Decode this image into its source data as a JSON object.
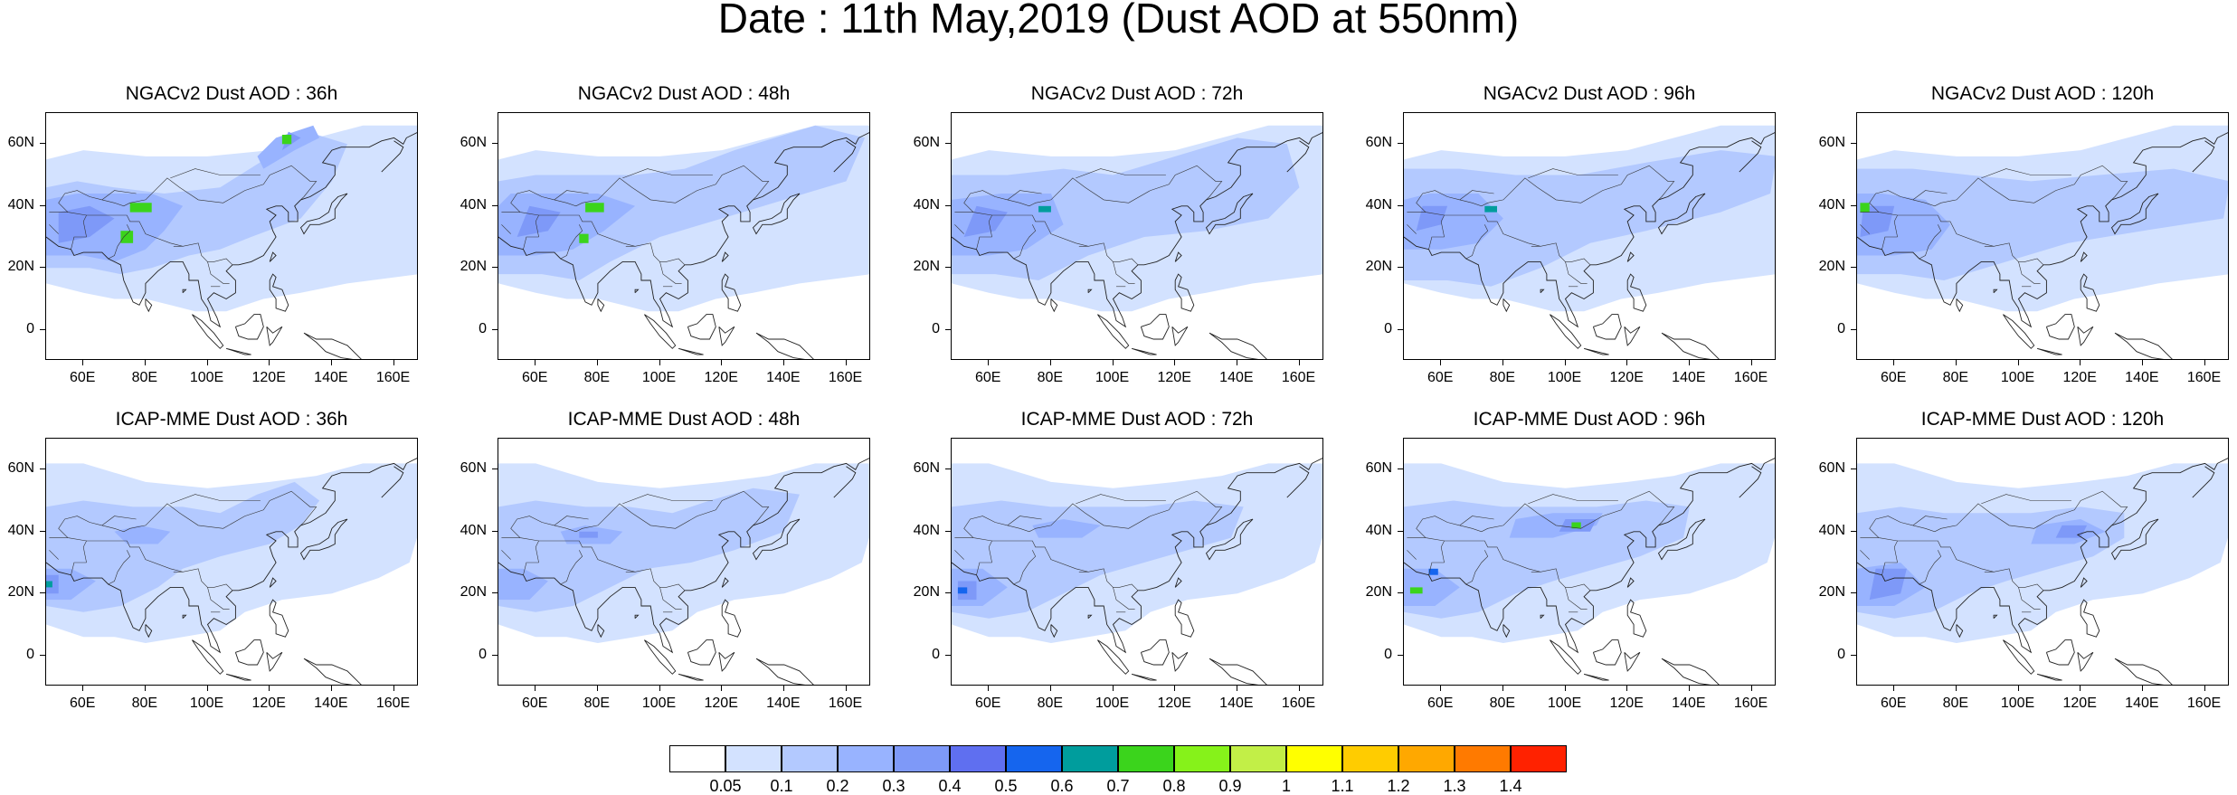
{
  "title": "Date : 11th May,2019 (Dust AOD at 550nm)",
  "axes": {
    "y_ticks": [
      "60N",
      "40N",
      "20N",
      "0"
    ],
    "x_ticks": [
      "60E",
      "80E",
      "100E",
      "120E",
      "140E",
      "160E"
    ]
  },
  "panels": [
    {
      "title": "NGACv2 Dust AOD : 36h",
      "model": "NGACv2",
      "lead": "36h"
    },
    {
      "title": "NGACv2 Dust AOD : 48h",
      "model": "NGACv2",
      "lead": "48h"
    },
    {
      "title": "NGACv2 Dust AOD : 72h",
      "model": "NGACv2",
      "lead": "72h"
    },
    {
      "title": "NGACv2 Dust AOD : 96h",
      "model": "NGACv2",
      "lead": "96h"
    },
    {
      "title": "NGACv2 Dust AOD : 120h",
      "model": "NGACv2",
      "lead": "120h"
    },
    {
      "title": "ICAP-MME Dust AOD : 36h",
      "model": "ICAP-MME",
      "lead": "36h"
    },
    {
      "title": "ICAP-MME Dust AOD : 48h",
      "model": "ICAP-MME",
      "lead": "48h"
    },
    {
      "title": "ICAP-MME Dust AOD : 72h",
      "model": "ICAP-MME",
      "lead": "72h"
    },
    {
      "title": "ICAP-MME Dust AOD : 96h",
      "model": "ICAP-MME",
      "lead": "96h"
    },
    {
      "title": "ICAP-MME Dust AOD : 120h",
      "model": "ICAP-MME",
      "lead": "120h"
    }
  ],
  "colorbar": {
    "labels": [
      "0.05",
      "0.1",
      "0.2",
      "0.3",
      "0.4",
      "0.5",
      "0.6",
      "0.7",
      "0.8",
      "0.9",
      "1",
      "1.1",
      "1.2",
      "1.3",
      "1.4"
    ],
    "colors": [
      "#ffffff",
      "#d3e2ff",
      "#b3c9ff",
      "#98b3ff",
      "#7e99f8",
      "#5f6ff0",
      "#1565ee",
      "#009d9d",
      "#3bd41c",
      "#86f21a",
      "#c2ef47",
      "#ffff00",
      "#ffcc00",
      "#ffa800",
      "#ff7a00",
      "#ff2200"
    ]
  }
}
